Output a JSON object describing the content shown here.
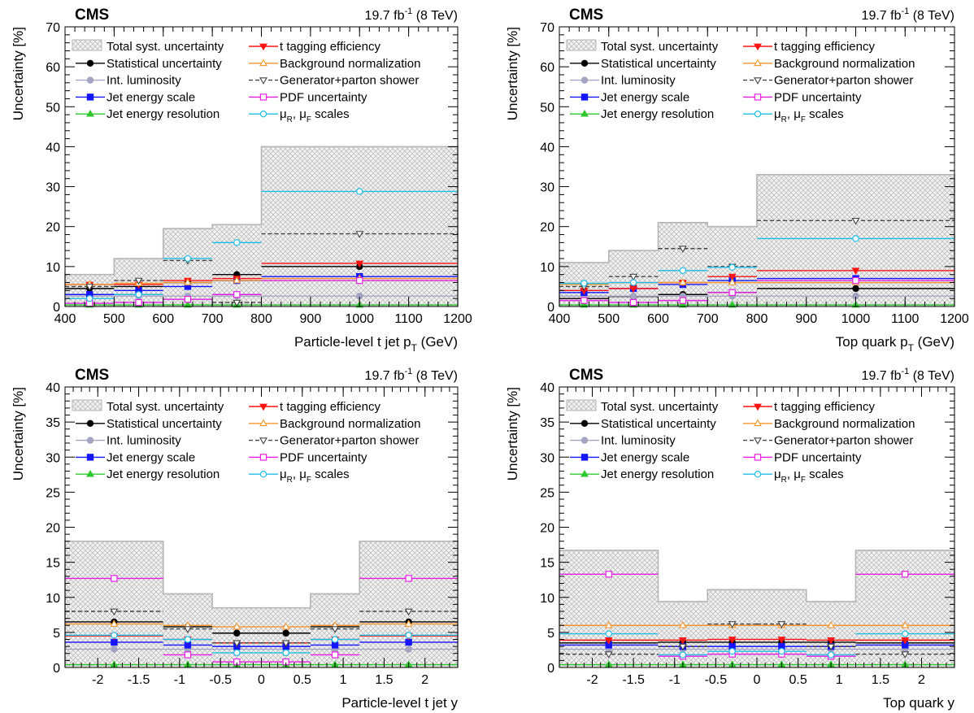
{
  "chart_data": [
    {
      "type": "area",
      "experiment": "CMS",
      "luminosity_text": "19.7 fb",
      "luminosity_sup": "-1",
      "energy_text": " (8 TeV)",
      "xlabel": "Particle-level t jet p",
      "xlabel_sub": "T",
      "xlabel_unit": " (GeV)",
      "ylabel": "Uncertainty [%]",
      "xlim": [
        400,
        1200
      ],
      "ylim": [
        0,
        70
      ],
      "xticks": [
        400,
        500,
        600,
        700,
        800,
        900,
        1000,
        1100,
        1200
      ],
      "yticks": [
        0,
        10,
        20,
        30,
        40,
        50,
        60,
        70
      ],
      "bins": [
        [
          400,
          500
        ],
        [
          500,
          600
        ],
        [
          600,
          700
        ],
        [
          700,
          800
        ],
        [
          800,
          1200
        ]
      ],
      "total": [
        8,
        12,
        19.5,
        20.5,
        40
      ],
      "series": [
        {
          "key": "stat",
          "values": [
            4.5,
            5.0,
            6.0,
            8.0,
            10.0
          ]
        },
        {
          "key": "lumi",
          "values": [
            2.6,
            2.6,
            2.6,
            2.6,
            2.6
          ]
        },
        {
          "key": "jes",
          "values": [
            3.0,
            4.0,
            5.0,
            6.5,
            7.5
          ]
        },
        {
          "key": "jer",
          "values": [
            0.4,
            0.4,
            0.4,
            0.4,
            0.4
          ]
        },
        {
          "key": "ttag",
          "values": [
            5.5,
            5.5,
            6.5,
            7.0,
            10.8
          ]
        },
        {
          "key": "bkg",
          "values": [
            5.5,
            5.8,
            6.0,
            6.5,
            7.0
          ]
        },
        {
          "key": "gen",
          "values": [
            5.0,
            6.5,
            11.5,
            1.0,
            18.2
          ]
        },
        {
          "key": "pdf",
          "values": [
            0.8,
            1.0,
            1.8,
            3.0,
            6.5
          ]
        },
        {
          "key": "scale",
          "values": [
            2.0,
            3.0,
            12.0,
            16.0,
            28.8
          ]
        }
      ]
    },
    {
      "type": "area",
      "experiment": "CMS",
      "luminosity_text": "19.7 fb",
      "luminosity_sup": "-1",
      "energy_text": " (8 TeV)",
      "xlabel": "Top quark p",
      "xlabel_sub": "T",
      "xlabel_unit": " (GeV)",
      "ylabel": "Uncertainty [%]",
      "xlim": [
        400,
        1200
      ],
      "ylim": [
        0,
        70
      ],
      "xticks": [
        400,
        500,
        600,
        700,
        800,
        900,
        1000,
        1100,
        1200
      ],
      "yticks": [
        0,
        10,
        20,
        30,
        40,
        50,
        60,
        70
      ],
      "bins": [
        [
          400,
          500
        ],
        [
          500,
          600
        ],
        [
          600,
          700
        ],
        [
          700,
          800
        ],
        [
          800,
          1200
        ]
      ],
      "total": [
        11,
        14,
        21,
        20,
        33
      ],
      "series": [
        {
          "key": "stat",
          "values": [
            2.0,
            2.5,
            3.0,
            3.5,
            4.5
          ]
        },
        {
          "key": "lumi",
          "values": [
            2.6,
            2.6,
            2.6,
            2.6,
            2.6
          ]
        },
        {
          "key": "jes",
          "values": [
            3.5,
            4.5,
            5.5,
            6.5,
            7.0
          ]
        },
        {
          "key": "jer",
          "values": [
            0.4,
            0.4,
            0.4,
            0.4,
            0.4
          ]
        },
        {
          "key": "ttag",
          "values": [
            4.0,
            4.5,
            6.0,
            7.5,
            9.0
          ]
        },
        {
          "key": "bkg",
          "values": [
            5.5,
            6.0,
            6.0,
            6.0,
            6.0
          ]
        },
        {
          "key": "gen",
          "values": [
            5.0,
            7.5,
            14.5,
            10.0,
            21.5
          ]
        },
        {
          "key": "pdf",
          "values": [
            1.5,
            1.0,
            1.5,
            3.5,
            6.5
          ]
        },
        {
          "key": "scale",
          "values": [
            5.8,
            6.0,
            9.0,
            9.8,
            17.0
          ]
        }
      ]
    },
    {
      "type": "area",
      "experiment": "CMS",
      "luminosity_text": "19.7 fb",
      "luminosity_sup": "-1",
      "energy_text": " (8 TeV)",
      "xlabel": "Particle-level t jet y",
      "xlabel_sub": "",
      "xlabel_unit": "",
      "ylabel": "Uncertainty [%]",
      "xlim": [
        -2.4,
        2.4
      ],
      "ylim": [
        0,
        40
      ],
      "xticks": [
        -2,
        -1.5,
        -1,
        -0.5,
        0,
        0.5,
        1,
        1.5,
        2
      ],
      "yticks": [
        0,
        5,
        10,
        15,
        20,
        25,
        30,
        35,
        40
      ],
      "bins": [
        [
          -2.4,
          -1.2
        ],
        [
          -1.2,
          -0.6
        ],
        [
          -0.6,
          0
        ],
        [
          0,
          0.6
        ],
        [
          0.6,
          1.2
        ],
        [
          1.2,
          2.4
        ]
      ],
      "total": [
        18,
        10.5,
        8.5,
        8.5,
        10.5,
        18
      ],
      "series": [
        {
          "key": "stat",
          "values": [
            6.5,
            5.8,
            4.9,
            4.9,
            5.8,
            6.5
          ]
        },
        {
          "key": "lumi",
          "values": [
            2.6,
            2.6,
            2.6,
            2.6,
            2.6,
            2.6
          ]
        },
        {
          "key": "jes",
          "values": [
            3.6,
            3.2,
            3.0,
            3.0,
            3.2,
            3.6
          ]
        },
        {
          "key": "jer",
          "values": [
            0.4,
            0.4,
            0.4,
            0.4,
            0.4,
            0.4
          ]
        },
        {
          "key": "ttag",
          "values": [
            4.5,
            4.0,
            3.5,
            3.5,
            4.0,
            4.5
          ]
        },
        {
          "key": "bkg",
          "values": [
            6.2,
            6.0,
            5.8,
            5.8,
            6.0,
            6.2
          ]
        },
        {
          "key": "gen",
          "values": [
            8.0,
            5.5,
            3.5,
            3.5,
            5.5,
            8.0
          ]
        },
        {
          "key": "pdf",
          "values": [
            12.7,
            1.8,
            0.8,
            0.8,
            1.8,
            12.7
          ]
        },
        {
          "key": "scale",
          "values": [
            4.6,
            4.0,
            2.1,
            2.1,
            4.0,
            4.6
          ]
        }
      ]
    },
    {
      "type": "area",
      "experiment": "CMS",
      "luminosity_text": "19.7 fb",
      "luminosity_sup": "-1",
      "energy_text": " (8 TeV)",
      "xlabel": "Top quark y",
      "xlabel_sub": "",
      "xlabel_unit": "",
      "ylabel": "Uncertainty [%]",
      "xlim": [
        -2.4,
        2.4
      ],
      "ylim": [
        0,
        40
      ],
      "xticks": [
        -2,
        -1.5,
        -1,
        -0.5,
        0,
        0.5,
        1,
        1.5,
        2
      ],
      "yticks": [
        0,
        5,
        10,
        15,
        20,
        25,
        30,
        35,
        40
      ],
      "bins": [
        [
          -2.4,
          -1.2
        ],
        [
          -1.2,
          -0.6
        ],
        [
          -0.6,
          0
        ],
        [
          0,
          0.6
        ],
        [
          0.6,
          1.2
        ],
        [
          1.2,
          2.4
        ]
      ],
      "total": [
        16.7,
        9.4,
        11.1,
        11.1,
        9.4,
        16.7
      ],
      "series": [
        {
          "key": "stat",
          "values": [
            3.5,
            3.6,
            3.6,
            3.6,
            3.6,
            3.5
          ]
        },
        {
          "key": "lumi",
          "values": [
            2.6,
            2.6,
            2.6,
            2.6,
            2.6,
            2.6
          ]
        },
        {
          "key": "jes",
          "values": [
            3.2,
            3.0,
            3.0,
            3.0,
            3.0,
            3.2
          ]
        },
        {
          "key": "jer",
          "values": [
            0.4,
            0.4,
            0.4,
            0.4,
            0.4,
            0.4
          ]
        },
        {
          "key": "ttag",
          "values": [
            3.9,
            3.9,
            4.0,
            4.0,
            3.9,
            3.9
          ]
        },
        {
          "key": "bkg",
          "values": [
            6.0,
            6.0,
            6.0,
            6.0,
            6.0,
            6.0
          ]
        },
        {
          "key": "gen",
          "values": [
            1.9,
            3.0,
            6.2,
            6.2,
            3.0,
            1.9
          ]
        },
        {
          "key": "pdf",
          "values": [
            13.3,
            1.6,
            1.9,
            1.9,
            1.6,
            13.3
          ]
        },
        {
          "key": "scale",
          "values": [
            4.8,
            1.8,
            2.3,
            2.3,
            1.8,
            4.8
          ]
        }
      ]
    }
  ],
  "legend": {
    "total_label": "Total syst. uncertainty",
    "entries": [
      {
        "key": "stat",
        "label": "Statistical uncertainty",
        "sub": "",
        "label2": "",
        "sub2": "",
        "tail": "",
        "color": "#000000",
        "marker": "circle-filled",
        "dashed": false
      },
      {
        "key": "lumi",
        "label": "Int. luminosity",
        "sub": "",
        "label2": "",
        "sub2": "",
        "tail": "",
        "color": "#a3a3c2",
        "marker": "circle-filled",
        "dashed": false
      },
      {
        "key": "jes",
        "label": "Jet energy scale",
        "sub": "",
        "label2": "",
        "sub2": "",
        "tail": "",
        "color": "#1414ff",
        "marker": "square-filled",
        "dashed": false
      },
      {
        "key": "jer",
        "label": "Jet energy resolution",
        "sub": "",
        "label2": "",
        "sub2": "",
        "tail": "",
        "color": "#2ec82e",
        "marker": "triangle-up-filled",
        "dashed": false
      },
      {
        "key": "ttag",
        "label": "t tagging efficiency",
        "sub": "",
        "label2": "",
        "sub2": "",
        "tail": "",
        "color": "#ff1414",
        "marker": "triangle-down-filled",
        "dashed": false
      },
      {
        "key": "bkg",
        "label": "Background normalization",
        "sub": "",
        "label2": "",
        "sub2": "",
        "tail": "",
        "color": "#f5962e",
        "marker": "triangle-up-open",
        "dashed": false
      },
      {
        "key": "gen",
        "label": "Generator+parton shower",
        "sub": "",
        "label2": "",
        "sub2": "",
        "tail": "",
        "color": "#444444",
        "marker": "triangle-down-open",
        "dashed": true
      },
      {
        "key": "pdf",
        "label": "PDF uncertainty",
        "sub": "",
        "label2": "",
        "sub2": "",
        "tail": "",
        "color": "#e61ee6",
        "marker": "square-open",
        "dashed": false
      },
      {
        "key": "scale",
        "label": "μ",
        "sub": "R",
        "label2": ", μ",
        "sub2": "F",
        "tail": " scales",
        "color": "#1ebee6",
        "marker": "circle-open",
        "dashed": false
      }
    ]
  }
}
